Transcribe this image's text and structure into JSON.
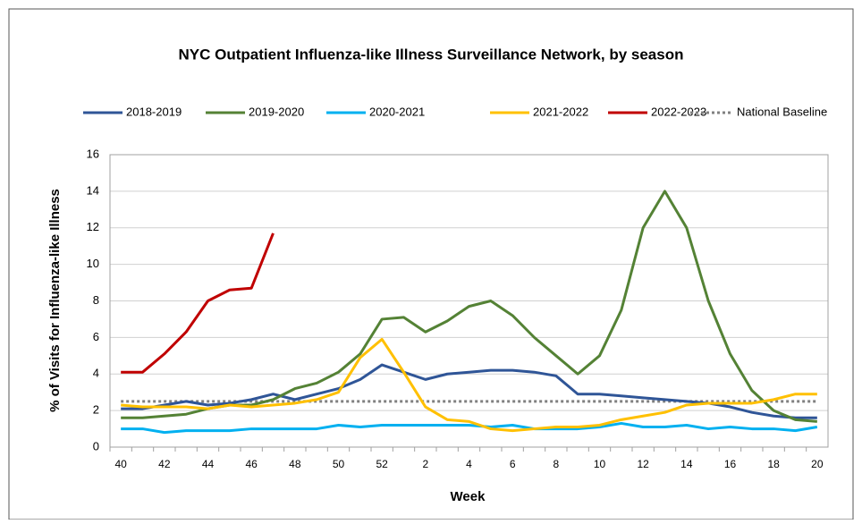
{
  "chart_data": {
    "type": "line",
    "title": "NYC Outpatient Influenza-like Illness Surveillance Network, by season",
    "x_label": "Week",
    "y_label": "% of Visits for Influenza-like Illness",
    "categories": [
      "40",
      null,
      "42",
      null,
      "44",
      null,
      "46",
      null,
      "48",
      null,
      "50",
      null,
      "52",
      null,
      "2",
      null,
      "4",
      null,
      "6",
      null,
      "8",
      null,
      "10",
      null,
      "12",
      null,
      "14",
      null,
      "16",
      null,
      "18",
      null,
      "20"
    ],
    "ylim": [
      0,
      16
    ],
    "yticks": [
      0,
      2,
      4,
      6,
      8,
      10,
      12,
      14,
      16
    ],
    "grid": true,
    "legend": "top",
    "series": [
      {
        "name": "2018-2019",
        "color": "#2f5597",
        "values": [
          2.1,
          2.1,
          2.3,
          2.5,
          2.3,
          2.4,
          2.6,
          2.9,
          2.6,
          2.9,
          3.2,
          3.7,
          4.5,
          4.1,
          3.7,
          4.0,
          4.1,
          4.2,
          4.2,
          4.1,
          3.9,
          2.9,
          2.9,
          2.8,
          2.7,
          2.6,
          2.5,
          2.4,
          2.2,
          1.9,
          1.7,
          1.6,
          1.6
        ]
      },
      {
        "name": "2019-2020",
        "color": "#548235",
        "values": [
          1.6,
          1.6,
          1.7,
          1.8,
          2.1,
          2.3,
          2.3,
          2.6,
          3.2,
          3.5,
          4.1,
          5.1,
          7.0,
          7.1,
          6.3,
          6.9,
          7.7,
          8.0,
          7.2,
          6.0,
          5.0,
          4.0,
          5.0,
          7.5,
          12.0,
          14.0,
          12.0,
          8.0,
          5.1,
          3.1,
          2.0,
          1.5,
          1.4
        ]
      },
      {
        "name": "2020-2021",
        "color": "#00b0f0",
        "values": [
          1.0,
          1.0,
          0.8,
          0.9,
          0.9,
          0.9,
          1.0,
          1.0,
          1.0,
          1.0,
          1.2,
          1.1,
          1.2,
          1.2,
          1.2,
          1.2,
          1.2,
          1.1,
          1.2,
          1.0,
          1.0,
          1.0,
          1.1,
          1.3,
          1.1,
          1.1,
          1.2,
          1.0,
          1.1,
          1.0,
          1.0,
          0.9,
          1.1
        ]
      },
      {
        "name": "2021-2022",
        "color": "#ffc000",
        "values": [
          2.3,
          2.2,
          2.2,
          2.2,
          2.1,
          2.3,
          2.2,
          2.3,
          2.4,
          2.6,
          3.0,
          4.9,
          5.9,
          4.1,
          2.2,
          1.5,
          1.4,
          1.0,
          0.9,
          1.0,
          1.1,
          1.1,
          1.2,
          1.5,
          1.7,
          1.9,
          2.3,
          2.4,
          2.4,
          2.4,
          2.6,
          2.9,
          2.9
        ]
      },
      {
        "name": "2022-2023",
        "color": "#c00000",
        "values": [
          4.1,
          4.1,
          5.1,
          6.3,
          8.0,
          8.6,
          8.7,
          11.7,
          null,
          null,
          null,
          null,
          null,
          null,
          null,
          null,
          null,
          null,
          null,
          null,
          null,
          null,
          null,
          null,
          null,
          null,
          null,
          null,
          null,
          null,
          null,
          null,
          null
        ]
      }
    ],
    "reference_line": {
      "name": "National Baseline",
      "value": 2.5,
      "color": "#808080"
    }
  }
}
